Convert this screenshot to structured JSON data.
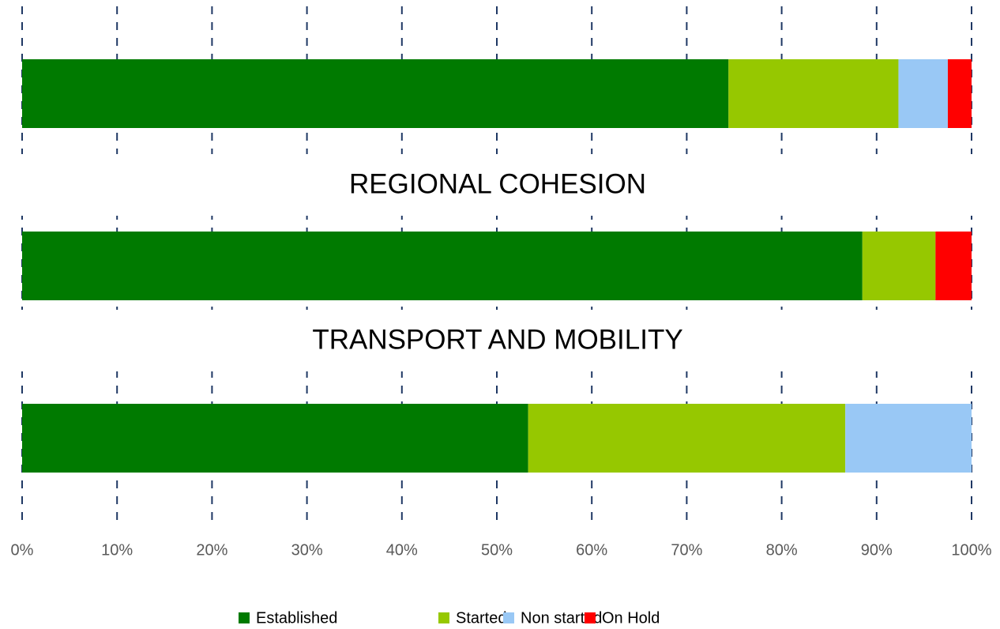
{
  "chart_data": {
    "type": "stacked-bar-horizontal",
    "categories": [
      null,
      "REGIONAL COHESION",
      "TRANSPORT AND MOBILITY"
    ],
    "series": [
      {
        "name": "Established",
        "color": "#007a00",
        "values": [
          74.4,
          88.5,
          53.3
        ]
      },
      {
        "name": "Started",
        "color": "#96c800",
        "values": [
          17.9,
          7.7,
          33.4
        ]
      },
      {
        "name": "Non started",
        "color": "#99c8f5",
        "values": [
          5.2,
          0,
          13.3
        ]
      },
      {
        "name": "On Hold",
        "color": "#ff0000",
        "values": [
          2.5,
          3.8,
          0
        ]
      }
    ],
    "xlim": [
      0,
      100
    ],
    "xticks": [
      {
        "value": 0,
        "label": "0%"
      },
      {
        "value": 10,
        "label": "10%"
      },
      {
        "value": 20,
        "label": "20%"
      },
      {
        "value": 30,
        "label": "30%"
      },
      {
        "value": 40,
        "label": "40%"
      },
      {
        "value": 50,
        "label": "50%"
      },
      {
        "value": 60,
        "label": "60%"
      },
      {
        "value": 70,
        "label": "70%"
      },
      {
        "value": 80,
        "label": "80%"
      },
      {
        "value": 90,
        "label": "90%"
      },
      {
        "value": 100,
        "label": "100%"
      }
    ],
    "grid": true,
    "legend": "bottom"
  }
}
